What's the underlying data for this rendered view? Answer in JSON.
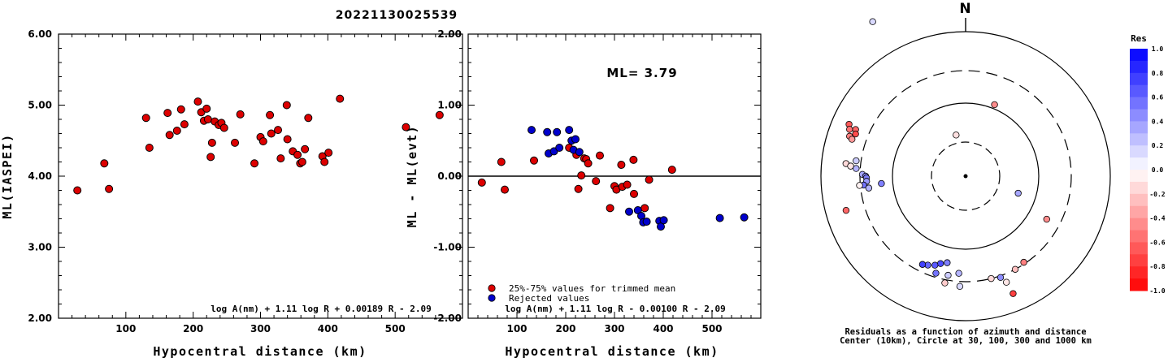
{
  "title": "20221130025539",
  "chart_data": [
    {
      "type": "scatter",
      "id": "left",
      "xlabel": "Hypocentral distance (km)",
      "ylabel": "ML(IASPEI)",
      "xlim": [
        0,
        600
      ],
      "ylim": [
        2.0,
        6.0
      ],
      "xticks": [
        100,
        200,
        300,
        400,
        500
      ],
      "yticks": [
        "2.00",
        "3.00",
        "4.00",
        "5.00",
        "6.00"
      ],
      "formula": "log A(nm) + 1.11 log R + 0.00189 R - 2.09",
      "series": [
        {
          "color": "#dd0000",
          "points": [
            [
              28,
              3.8
            ],
            [
              68,
              4.18
            ],
            [
              75,
              3.82
            ],
            [
              130,
              4.82
            ],
            [
              135,
              4.4
            ],
            [
              162,
              4.89
            ],
            [
              165,
              4.58
            ],
            [
              176,
              4.64
            ],
            [
              182,
              4.94
            ],
            [
              187,
              4.73
            ],
            [
              207,
              5.05
            ],
            [
              212,
              4.9
            ],
            [
              216,
              4.78
            ],
            [
              220,
              4.95
            ],
            [
              222,
              4.8
            ],
            [
              226,
              4.27
            ],
            [
              228,
              4.47
            ],
            [
              232,
              4.77
            ],
            [
              238,
              4.72
            ],
            [
              242,
              4.75
            ],
            [
              246,
              4.68
            ],
            [
              262,
              4.47
            ],
            [
              270,
              4.87
            ],
            [
              291,
              4.18
            ],
            [
              300,
              4.55
            ],
            [
              304,
              4.49
            ],
            [
              314,
              4.86
            ],
            [
              316,
              4.6
            ],
            [
              326,
              4.65
            ],
            [
              330,
              4.25
            ],
            [
              339,
              5.0
            ],
            [
              340,
              4.52
            ],
            [
              348,
              4.35
            ],
            [
              355,
              4.3
            ],
            [
              359,
              4.18
            ],
            [
              362,
              4.2
            ],
            [
              366,
              4.38
            ],
            [
              371,
              4.82
            ],
            [
              392,
              4.28
            ],
            [
              395,
              4.2
            ],
            [
              401,
              4.33
            ],
            [
              418,
              5.09
            ],
            [
              516,
              4.69
            ],
            [
              566,
              4.86
            ]
          ]
        }
      ]
    },
    {
      "type": "scatter",
      "id": "middle",
      "xlabel": "Hypocentral distance (km)",
      "ylabel": "ML - ML(evt)",
      "xlim": [
        0,
        600
      ],
      "ylim": [
        -2.0,
        2.0
      ],
      "xticks": [
        100,
        200,
        300,
        400,
        500
      ],
      "yticks": [
        "-2.00",
        "-1.00",
        "0.00",
        "1.00",
        "2.00"
      ],
      "annotation": "ML= 3.79",
      "formula": "log A(nm) + 1.11 log R - 0.00100 R - 2.09",
      "legend": {
        "placement": "bottom-left",
        "entries": [
          {
            "label": "25%-75% values for trimmed mean",
            "color": "#dd0000"
          },
          {
            "label": "Rejected values",
            "color": "#0000cc"
          }
        ]
      },
      "series": [
        {
          "name": "25%-75% values for trimmed mean",
          "color": "#dd0000",
          "points": [
            [
              28,
              -0.09
            ],
            [
              68,
              0.2
            ],
            [
              75,
              -0.19
            ],
            [
              135,
              0.22
            ],
            [
              207,
              0.4
            ],
            [
              222,
              0.3
            ],
            [
              226,
              -0.18
            ],
            [
              232,
              0.01
            ],
            [
              238,
              0.25
            ],
            [
              242,
              0.24
            ],
            [
              246,
              0.18
            ],
            [
              262,
              -0.07
            ],
            [
              270,
              0.29
            ],
            [
              291,
              -0.45
            ],
            [
              300,
              -0.14
            ],
            [
              304,
              -0.19
            ],
            [
              314,
              0.16
            ],
            [
              316,
              -0.15
            ],
            [
              326,
              -0.12
            ],
            [
              339,
              0.23
            ],
            [
              340,
              -0.25
            ],
            [
              362,
              -0.45
            ],
            [
              371,
              -0.05
            ],
            [
              418,
              0.09
            ]
          ]
        },
        {
          "name": "Rejected values",
          "color": "#0000cc",
          "points": [
            [
              130,
              0.65
            ],
            [
              162,
              0.62
            ],
            [
              165,
              0.32
            ],
            [
              176,
              0.35
            ],
            [
              182,
              0.62
            ],
            [
              187,
              0.4
            ],
            [
              207,
              0.65
            ],
            [
              212,
              0.5
            ],
            [
              216,
              0.37
            ],
            [
              220,
              0.52
            ],
            [
              228,
              0.34
            ],
            [
              330,
              -0.5
            ],
            [
              348,
              -0.48
            ],
            [
              355,
              -0.56
            ],
            [
              359,
              -0.65
            ],
            [
              366,
              -0.64
            ],
            [
              392,
              -0.63
            ],
            [
              395,
              -0.71
            ],
            [
              401,
              -0.62
            ],
            [
              516,
              -0.59
            ],
            [
              566,
              -0.58
            ]
          ]
        }
      ]
    }
  ],
  "polar": {
    "north_label": "N",
    "caption_line1": "Residuals as a function of azimuth and distance",
    "caption_line2": "Center (10km), Circle at 30, 100, 300 and 1000 km",
    "points": [
      {
        "az": -31,
        "d": 222,
        "res": 0.15
      },
      {
        "az": 22,
        "d": 95,
        "res": -0.45
      },
      {
        "az": -13,
        "d": 52,
        "res": -0.12
      },
      {
        "az": -66,
        "d": 157,
        "res": -0.65
      },
      {
        "az": -67,
        "d": 147,
        "res": -0.6
      },
      {
        "az": -68,
        "d": 154,
        "res": -0.55
      },
      {
        "az": -69,
        "d": 145,
        "res": -0.7
      },
      {
        "az": -71,
        "d": 151,
        "res": -0.5
      },
      {
        "az": -72,
        "d": 147,
        "res": -0.4
      },
      {
        "az": -84,
        "d": 148,
        "res": -0.15
      },
      {
        "az": -85,
        "d": 142,
        "res": -0.1
      },
      {
        "az": -82,
        "d": 136,
        "res": 0.2
      },
      {
        "az": -86,
        "d": 135,
        "res": 0.3
      },
      {
        "az": -89,
        "d": 127,
        "res": 0.35
      },
      {
        "az": -90,
        "d": 123,
        "res": 0.45
      },
      {
        "az": -91,
        "d": 122,
        "res": 0.5
      },
      {
        "az": -93,
        "d": 122,
        "res": 0.4
      },
      {
        "az": -95,
        "d": 126,
        "res": 0.55
      },
      {
        "az": -95,
        "d": 104,
        "res": 0.5
      },
      {
        "az": -97,
        "d": 120,
        "res": 0.3
      },
      {
        "az": -95,
        "d": 131,
        "res": -0.05
      },
      {
        "az": -106,
        "d": 153,
        "res": -0.6
      },
      {
        "az": 108,
        "d": 68,
        "res": 0.35
      },
      {
        "az": -168,
        "d": 109,
        "res": 0.5
      },
      {
        "az": -164,
        "d": 112,
        "res": 0.7
      },
      {
        "az": -161,
        "d": 116,
        "res": 0.65
      },
      {
        "az": -157,
        "d": 119,
        "res": 0.6
      },
      {
        "az": -154,
        "d": 121,
        "res": 0.75
      },
      {
        "az": -163,
        "d": 125,
        "res": 0.55
      },
      {
        "az": -170,
        "d": 124,
        "res": 0.2
      },
      {
        "az": -169,
        "d": 134,
        "res": -0.2
      },
      {
        "az": -176,
        "d": 120,
        "res": 0.3
      },
      {
        "az": -177,
        "d": 136,
        "res": 0.15
      },
      {
        "az": 166,
        "d": 130,
        "res": -0.15
      },
      {
        "az": 161,
        "d": 132,
        "res": 0.45
      },
      {
        "az": 159,
        "d": 140,
        "res": -0.1
      },
      {
        "az": 152,
        "d": 130,
        "res": -0.25
      },
      {
        "az": 146,
        "d": 128,
        "res": -0.5
      },
      {
        "az": 158,
        "d": 156,
        "res": -0.75
      },
      {
        "az": 118,
        "d": 113,
        "res": -0.45
      }
    ]
  },
  "colorbar": {
    "title": "Res",
    "labels": [
      "1.0",
      "0.8",
      "0.6",
      "0.4",
      "0.2",
      "0.0",
      "-0.2",
      "-0.4",
      "-0.6",
      "-0.8",
      "-1.0"
    ]
  },
  "colors": {
    "red": "#dd0000",
    "blue": "#0000cc",
    "positive_res": "#0000ff",
    "negative_res": "#ff0000"
  }
}
